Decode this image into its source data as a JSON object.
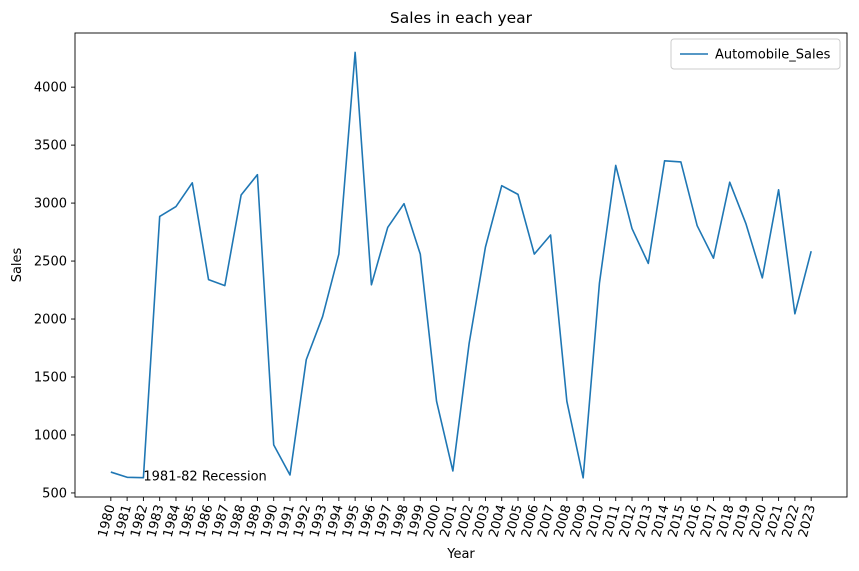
{
  "chart_data": {
    "type": "line",
    "title": "Sales in each year",
    "xlabel": "Year",
    "ylabel": "Sales",
    "x": [
      1980,
      1981,
      1982,
      1983,
      1984,
      1985,
      1986,
      1987,
      1988,
      1989,
      1990,
      1991,
      1992,
      1993,
      1994,
      1995,
      1996,
      1997,
      1998,
      1999,
      2000,
      2001,
      2002,
      2003,
      2004,
      2005,
      2006,
      2007,
      2008,
      2009,
      2010,
      2011,
      2012,
      2013,
      2014,
      2015,
      2016,
      2017,
      2018,
      2019,
      2020,
      2021,
      2022,
      2023
    ],
    "series": [
      {
        "name": "Automobile_Sales",
        "color": "#1f77b4",
        "values": [
          680,
          635,
          632,
          2885,
          2970,
          3175,
          2340,
          2288,
          3070,
          3245,
          915,
          655,
          1650,
          2020,
          2560,
          4300,
          2295,
          2790,
          2995,
          2560,
          1290,
          690,
          1790,
          2620,
          3150,
          3075,
          2560,
          2725,
          1290,
          630,
          2310,
          3325,
          2780,
          2480,
          3365,
          3355,
          2805,
          2525,
          3180,
          2820,
          2355,
          3115,
          2045,
          2585
        ]
      }
    ],
    "xticks": [
      "1980",
      "1981",
      "1982",
      "1983",
      "1984",
      "1985",
      "1986",
      "1987",
      "1988",
      "1989",
      "1990",
      "1991",
      "1992",
      "1993",
      "1994",
      "1995",
      "1996",
      "1997",
      "1998",
      "1999",
      "2000",
      "2001",
      "2002",
      "2003",
      "2004",
      "2005",
      "2006",
      "2007",
      "2008",
      "2009",
      "2010",
      "2011",
      "2012",
      "2013",
      "2014",
      "2015",
      "2016",
      "2017",
      "2018",
      "2019",
      "2020",
      "2021",
      "2022",
      "2023"
    ],
    "yticks": [
      500,
      1000,
      1500,
      2000,
      2500,
      3000,
      3500,
      4000
    ],
    "ylim": [
      465,
      4467
    ],
    "xlim": [
      1977.8,
      2025.2
    ],
    "grid": false,
    "legend": "top-right",
    "annotations": [
      {
        "text": "1981-82 Recession",
        "x": 1982,
        "y": 650
      }
    ]
  }
}
